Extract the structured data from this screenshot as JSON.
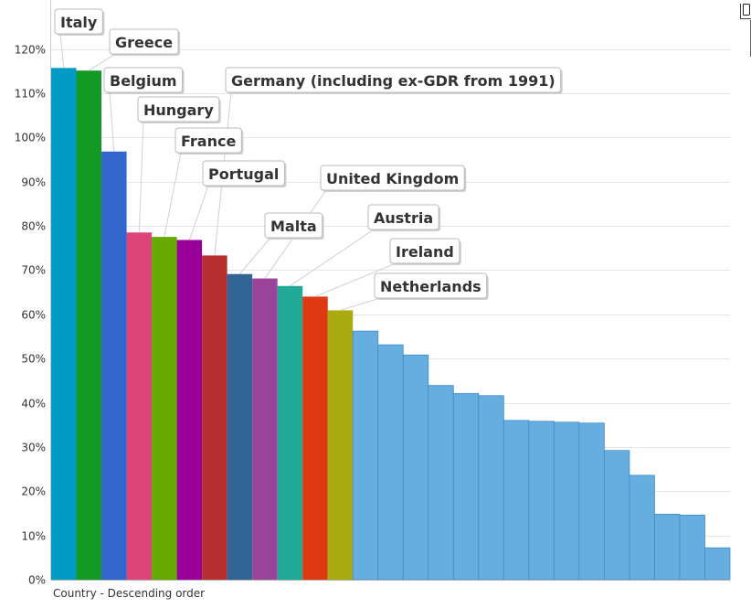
{
  "chart_data": {
    "type": "bar",
    "xlabel": "Country - Descending order",
    "ylabel": "",
    "ylim": [
      0,
      130
    ],
    "yticks": [
      0,
      10,
      20,
      30,
      40,
      50,
      60,
      70,
      80,
      90,
      100,
      110,
      120
    ],
    "ytick_suffix": "%",
    "grid": true,
    "legend": "none",
    "default_color": "#66aee0",
    "values": [
      115.7,
      115.1,
      96.8,
      78.5,
      77.5,
      76.8,
      73.3,
      69.1,
      68.1,
      66.4,
      64.0,
      60.9,
      56.2,
      53.1,
      50.8,
      43.9,
      42.1,
      41.6,
      36.0,
      35.8,
      35.6,
      35.4,
      29.2,
      23.6,
      14.8,
      14.6,
      7.2
    ],
    "bar_colors": [
      "#009ac7",
      "#139a24",
      "#3366cc",
      "#dd4477",
      "#66aa00",
      "#990099",
      "#b82e2e",
      "#316395",
      "#994499",
      "#22aa99",
      "#dd3912",
      "#aaaa11"
    ],
    "callouts": [
      {
        "label": "Italy",
        "bar": 0
      },
      {
        "label": "Greece",
        "bar": 1
      },
      {
        "label": "Belgium",
        "bar": 2
      },
      {
        "label": "Hungary",
        "bar": 3
      },
      {
        "label": "France",
        "bar": 4
      },
      {
        "label": "Germany (including ex-GDR from 1991)",
        "bar": 6
      },
      {
        "label": "Portugal",
        "bar": 5
      },
      {
        "label": "Malta",
        "bar": 7
      },
      {
        "label": "United Kingdom",
        "bar": 8
      },
      {
        "label": "Austria",
        "bar": 9
      },
      {
        "label": "Ireland",
        "bar": 10
      },
      {
        "label": "Netherlands",
        "bar": 11
      }
    ]
  }
}
